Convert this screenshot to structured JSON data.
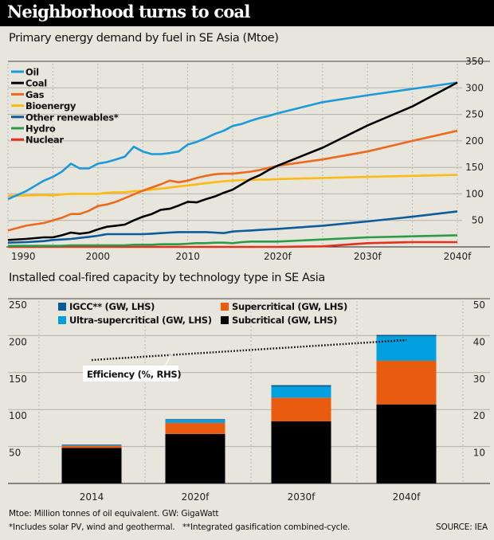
{
  "header": {
    "title": "Neighborhood turns to coal"
  },
  "footer": {
    "note1": "Mtoe: Million tonnes of oil equivalent. GW: GigaWatt",
    "note2": "*Includes solar PV, wind and geothermal.   **Integrated gasification combined-cycle.",
    "source": "SOURCE: IEA"
  },
  "chart_data": [
    {
      "type": "line",
      "title": "Primary energy demand by fuel in SE Asia (Mtoe)",
      "xlabel": "",
      "ylabel": "Mtoe",
      "x_ticks": [
        {
          "value": 1990,
          "label": "1990"
        },
        {
          "value": 2000,
          "label": "2000"
        },
        {
          "value": 2010,
          "label": "2010"
        },
        {
          "value": 2020,
          "label": "2020f"
        },
        {
          "value": 2030,
          "label": "2030f"
        },
        {
          "value": 2040,
          "label": "2040f"
        }
      ],
      "y_ticks": [
        50,
        100,
        150,
        200,
        250,
        300,
        350
      ],
      "xlim": [
        1990,
        2040
      ],
      "ylim": [
        0,
        350
      ],
      "y_axis_side": "right",
      "grid": true,
      "legend_position": "top-left",
      "x": [
        1990,
        1992,
        1994,
        1995,
        1996,
        1997,
        1998,
        1999,
        2000,
        2001,
        2002,
        2003,
        2004,
        2005,
        2006,
        2007,
        2008,
        2009,
        2010,
        2011,
        2012,
        2013,
        2014,
        2015,
        2016,
        2017,
        2018,
        2019,
        2020,
        2025,
        2030,
        2035,
        2040
      ],
      "series": [
        {
          "name": "Oil",
          "color": "#1a9ad9",
          "values": [
            90,
            105,
            125,
            132,
            142,
            157,
            148,
            148,
            157,
            160,
            165,
            170,
            189,
            180,
            175,
            175,
            177,
            180,
            193,
            198,
            205,
            213,
            219,
            228,
            232,
            238,
            243,
            247,
            252,
            273,
            286,
            298,
            310
          ]
        },
        {
          "name": "Coal",
          "color": "#000000",
          "values": [
            13,
            15,
            18,
            18,
            22,
            27,
            25,
            27,
            33,
            38,
            40,
            42,
            50,
            57,
            62,
            70,
            72,
            78,
            85,
            84,
            90,
            95,
            102,
            108,
            118,
            128,
            135,
            145,
            153,
            187,
            229,
            265,
            310
          ]
        },
        {
          "name": "Gas",
          "color": "#ec6a1c",
          "values": [
            31,
            40,
            45,
            50,
            55,
            62,
            62,
            68,
            77,
            80,
            85,
            92,
            99,
            106,
            112,
            118,
            125,
            122,
            125,
            130,
            134,
            137,
            138,
            138,
            140,
            142,
            145,
            149,
            153,
            165,
            180,
            200,
            219
          ]
        },
        {
          "name": "Bioenergy",
          "color": "#fdbb12",
          "values": [
            96,
            97,
            98,
            97,
            99,
            100,
            100,
            100,
            100,
            102,
            103,
            103,
            105,
            106,
            108,
            110,
            112,
            114,
            116,
            118,
            120,
            122,
            124,
            125,
            126,
            126,
            127,
            127,
            128,
            130,
            132,
            134,
            136
          ]
        },
        {
          "name": "Other renewables*",
          "color": "#0c5c9c",
          "values": [
            8,
            9,
            11,
            13,
            14,
            15,
            17,
            19,
            21,
            24,
            24,
            24,
            24,
            24,
            25,
            26,
            27,
            28,
            28,
            28,
            28,
            27,
            26,
            29,
            30,
            31,
            32,
            33,
            34,
            40,
            48,
            57,
            67
          ]
        },
        {
          "name": "Hydro",
          "color": "#2b9b48",
          "values": [
            2,
            2,
            2,
            2,
            2,
            3,
            3,
            3,
            3,
            3,
            3,
            3,
            4,
            4,
            4,
            5,
            5,
            5,
            6,
            7,
            7,
            8,
            8,
            7,
            9,
            10,
            10,
            10,
            10,
            14,
            18,
            20,
            22
          ]
        },
        {
          "name": "Nuclear",
          "color": "#e3311d",
          "values": [
            0,
            0,
            0,
            0,
            0,
            0,
            0,
            0,
            0,
            0,
            0,
            0,
            0,
            0,
            0,
            0,
            0,
            0,
            0,
            0,
            0,
            0,
            0,
            0,
            0,
            0,
            0,
            0,
            0,
            1,
            7,
            9,
            9
          ]
        }
      ]
    },
    {
      "type": "bar",
      "stacked": true,
      "title": "Installed coal-fired capacity by technology type in SE Asia",
      "xlabel": "",
      "ylabel": "GW (LHS)",
      "y2label": "Efficiency % (RHS)",
      "categories": [
        "2014",
        "2020f",
        "2030f",
        "2040f"
      ],
      "ylim": [
        0,
        250
      ],
      "y_ticks": [
        50,
        100,
        150,
        200,
        250
      ],
      "y2lim": [
        0,
        50
      ],
      "y2_ticks": [
        10,
        20,
        30,
        40,
        50
      ],
      "grid": true,
      "legend_position": "top-left",
      "series": [
        {
          "name": "Subcritical (GW, LHS)",
          "color": "#000000",
          "values": [
            48,
            67,
            84,
            107
          ]
        },
        {
          "name": "Supercritical (GW, LHS)",
          "color": "#e95c0f",
          "values": [
            3,
            15,
            32,
            59
          ]
        },
        {
          "name": "Ultra-supercritical (GW, LHS)",
          "color": "#02a0de",
          "values": [
            1,
            4,
            15,
            33
          ]
        },
        {
          "name": "IGCC** (GW, LHS)",
          "color": "#0c5a94",
          "values": [
            0.5,
            1,
            2,
            2
          ]
        }
      ],
      "legend_order": [
        "IGCC** (GW, LHS)",
        "Supercritical (GW, LHS)",
        "Ultra-supercritical (GW, LHS)",
        "Subcritical (GW, LHS)"
      ],
      "efficiency_line": {
        "name": "Efficiency (%, RHS)",
        "color": "#000000",
        "style": "dotted",
        "start": {
          "category": "2014",
          "value": 33.4
        },
        "end": {
          "category": "2040f",
          "value": 38.8
        }
      }
    }
  ]
}
